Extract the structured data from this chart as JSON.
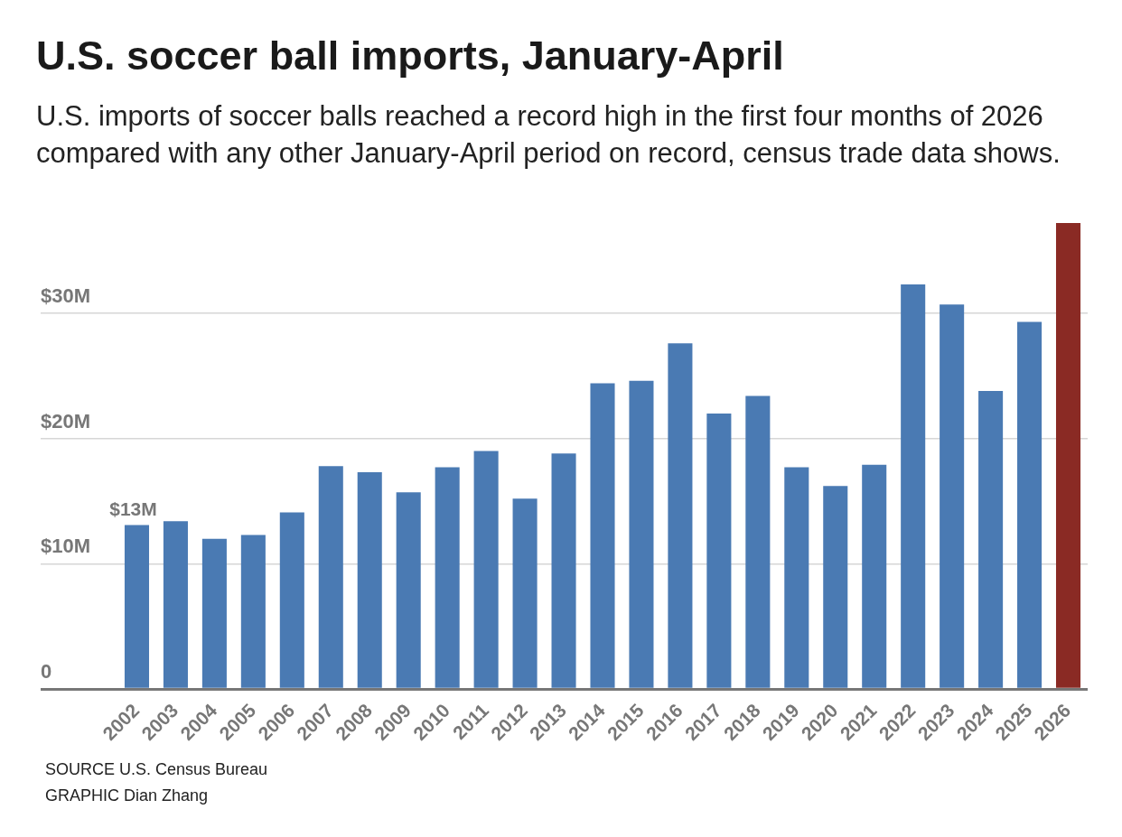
{
  "chart_data": {
    "type": "bar",
    "title": "U.S. soccer ball imports, January-April",
    "subtitle": "U.S. imports of soccer balls reached a record high in the first four months of 2026 compared with any other January-April period on record, census trade data shows.",
    "categories": [
      "2002",
      "2003",
      "2004",
      "2005",
      "2006",
      "2007",
      "2008",
      "2009",
      "2010",
      "2011",
      "2012",
      "2013",
      "2014",
      "2015",
      "2016",
      "2017",
      "2018",
      "2019",
      "2020",
      "2021",
      "2022",
      "2023",
      "2024",
      "2025",
      "2026"
    ],
    "values": [
      13.1,
      13.4,
      12.0,
      12.3,
      14.1,
      17.8,
      17.3,
      15.7,
      17.7,
      19.0,
      15.2,
      18.8,
      24.4,
      24.6,
      27.6,
      22.0,
      23.4,
      17.7,
      16.2,
      17.9,
      32.3,
      30.7,
      23.8,
      29.3,
      37.2
    ],
    "colors": [
      "#4a7ab3",
      "#4a7ab3",
      "#4a7ab3",
      "#4a7ab3",
      "#4a7ab3",
      "#4a7ab3",
      "#4a7ab3",
      "#4a7ab3",
      "#4a7ab3",
      "#4a7ab3",
      "#4a7ab3",
      "#4a7ab3",
      "#4a7ab3",
      "#4a7ab3",
      "#4a7ab3",
      "#4a7ab3",
      "#4a7ab3",
      "#4a7ab3",
      "#4a7ab3",
      "#4a7ab3",
      "#4a7ab3",
      "#4a7ab3",
      "#4a7ab3",
      "#4a7ab3",
      "#8a2a24"
    ],
    "value_labels": [
      "$13M",
      null,
      null,
      null,
      null,
      null,
      null,
      null,
      null,
      null,
      null,
      null,
      null,
      null,
      null,
      null,
      null,
      null,
      null,
      null,
      null,
      null,
      null,
      null,
      null
    ],
    "ylim": [
      0,
      37.2
    ],
    "yticks": [
      {
        "value": 0,
        "label": "0"
      },
      {
        "value": 10,
        "label": "$10M"
      },
      {
        "value": 20,
        "label": "$20M"
      },
      {
        "value": 30,
        "label": "$30M"
      }
    ],
    "grid": "y",
    "legend": false,
    "annotations": [
      "SOURCE U.S. Census Bureau",
      "GRAPHIC Dian Zhang"
    ]
  }
}
